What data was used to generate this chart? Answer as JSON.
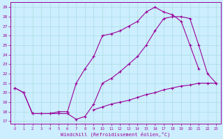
{
  "title": "",
  "xlabel": "Windchill (Refroidissement éolien,°C)",
  "bg_color": "#cceeff",
  "grid_color": "#aadddd",
  "line_color": "#990099",
  "xlim": [
    -0.5,
    23.5
  ],
  "ylim": [
    16.7,
    29.5
  ],
  "xticks": [
    0,
    1,
    2,
    3,
    4,
    5,
    6,
    7,
    8,
    9,
    10,
    11,
    12,
    13,
    14,
    15,
    16,
    17,
    18,
    19,
    20,
    21,
    22,
    23
  ],
  "yticks": [
    17,
    18,
    19,
    20,
    21,
    22,
    23,
    24,
    25,
    26,
    27,
    28,
    29
  ],
  "line1_x": [
    0,
    1,
    2,
    3,
    4,
    5,
    6,
    7,
    8,
    9,
    10,
    11,
    12,
    13,
    14,
    15,
    16,
    17,
    18,
    19,
    20,
    21,
    22,
    23
  ],
  "line1_y": [
    20.5,
    20.0,
    17.8,
    17.8,
    17.8,
    17.8,
    17.8,
    17.2,
    17.5,
    18.8,
    21.0,
    21.5,
    22.2,
    23.0,
    23.8,
    25.0,
    26.5,
    27.8,
    28.0,
    28.0,
    27.8,
    25.0,
    22.0,
    21.0
  ],
  "line2_x": [
    0,
    1,
    2,
    3,
    4,
    5,
    6,
    7,
    8,
    9,
    10,
    11,
    12,
    13,
    14,
    15,
    16,
    17,
    18,
    19,
    20,
    21,
    22,
    23
  ],
  "line2_y": [
    20.5,
    20.0,
    17.8,
    17.8,
    17.8,
    18.0,
    18.0,
    21.0,
    22.5,
    23.8,
    26.0,
    26.2,
    26.5,
    27.0,
    27.5,
    28.5,
    29.0,
    28.5,
    28.2,
    27.5,
    25.0,
    22.5,
    null,
    null
  ],
  "line3_x": [
    9,
    10,
    11,
    12,
    13,
    14,
    15,
    16,
    17,
    18,
    19,
    20,
    21,
    22,
    23
  ],
  "line3_y": [
    18.2,
    18.5,
    18.8,
    19.0,
    19.2,
    19.5,
    19.8,
    20.0,
    20.3,
    20.5,
    20.7,
    20.8,
    21.0,
    21.0,
    21.0
  ]
}
